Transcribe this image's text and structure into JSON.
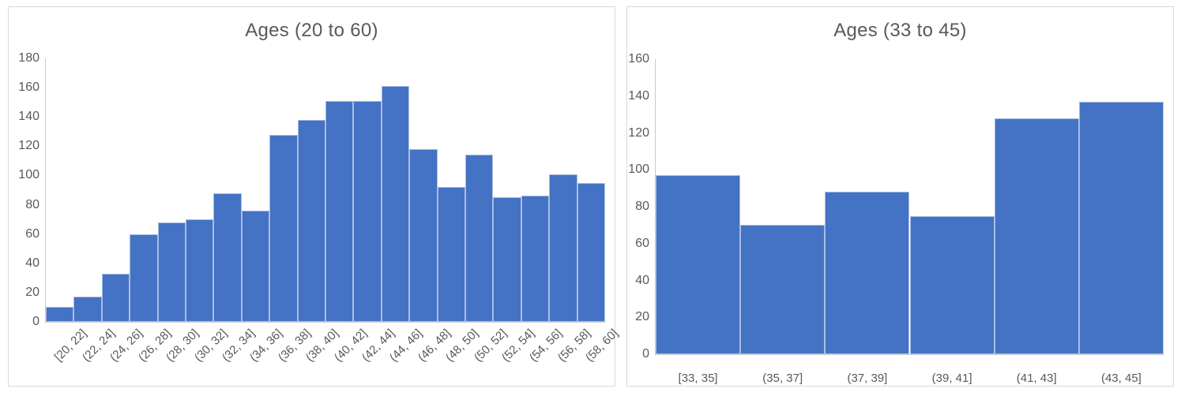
{
  "chart_data": [
    {
      "type": "bar",
      "title": "Ages (20 to 60)",
      "categories": [
        "[20, 22]",
        "(22, 24]",
        "(24, 26]",
        "(26, 28]",
        "(28, 30]",
        "(30, 32]",
        "(32, 34]",
        "(34, 36]",
        "(36, 38]",
        "(38, 40]",
        "(40, 42]",
        "(42, 44]",
        "(44, 46]",
        "(46, 48]",
        "(48, 50]",
        "(50, 52]",
        "(52, 54]",
        "(54, 56]",
        "(56, 58]",
        "(58, 60]"
      ],
      "values": [
        10,
        17,
        33,
        60,
        68,
        70,
        88,
        76,
        128,
        138,
        151,
        151,
        161,
        118,
        92,
        114,
        85,
        86,
        101,
        95
      ],
      "xlabel": "",
      "ylabel": "",
      "ylim": [
        0,
        180
      ],
      "y_ticks": [
        0,
        20,
        40,
        60,
        80,
        100,
        120,
        140,
        160,
        180
      ],
      "x_tick_rotation": -45,
      "grid": false,
      "legend": false,
      "bar_gap": 0
    },
    {
      "type": "bar",
      "title": "Ages (33 to 45)",
      "categories": [
        "[33, 35]",
        "(35, 37]",
        "(37, 39]",
        "(39, 41]",
        "(41, 43]",
        "(43, 45]"
      ],
      "values": [
        97,
        70,
        88,
        75,
        128,
        137
      ],
      "xlabel": "",
      "ylabel": "",
      "ylim": [
        0,
        160
      ],
      "y_ticks": [
        0,
        20,
        40,
        60,
        80,
        100,
        120,
        140,
        160
      ],
      "x_tick_rotation": 0,
      "grid": false,
      "legend": false,
      "bar_gap": 0
    }
  ],
  "colors": {
    "bar_fill": "#4472C4",
    "bar_border": "#A9BEE4",
    "title_text": "#595959",
    "tick_text": "#595959",
    "axis_line": "#C9C9C9",
    "panel_border": "#D9D9D9",
    "background": "#FFFFFF"
  }
}
